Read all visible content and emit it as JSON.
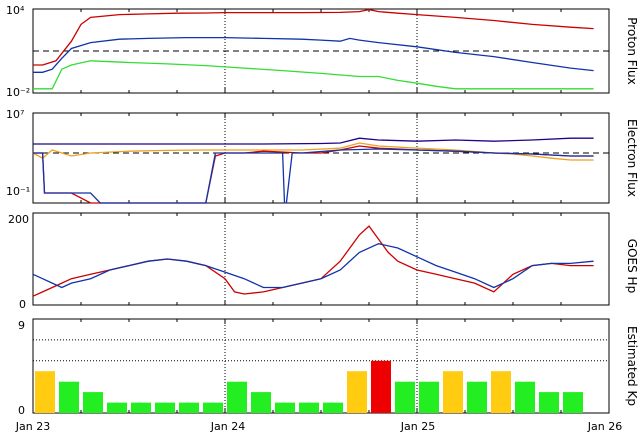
{
  "x_axis": {
    "ticks": [
      "Jan 23",
      "Jan 24",
      "Jan 25",
      "Jan 26"
    ],
    "range_days": [
      0,
      3
    ]
  },
  "colors": {
    "red": "#cc0000",
    "blue": "#1133aa",
    "green": "#33dd33",
    "orange": "#eea020",
    "navy": "#220088",
    "kp_green": "#22ee22",
    "kp_yellow": "#ffcc11",
    "kp_red": "#ee0000"
  },
  "chart_data": [
    {
      "type": "line",
      "ylabel": "Proton Flux",
      "yscale": "log",
      "ylim": [
        0.01,
        10000
      ],
      "y_tick_labels": [
        "10⁴",
        "10⁻²"
      ],
      "threshold": 10,
      "series": [
        {
          "color": "red",
          "x": [
            0,
            0.05,
            0.12,
            0.2,
            0.25,
            0.3,
            0.45,
            0.6,
            0.75,
            0.9,
            1.0,
            1.2,
            1.4,
            1.6,
            1.7,
            1.75,
            1.8,
            1.9,
            2.0,
            2.2,
            2.4,
            2.6,
            2.8,
            2.92
          ],
          "y": [
            1,
            1,
            2,
            50,
            800,
            2500,
            4000,
            4500,
            5000,
            5200,
            5500,
            5500,
            5500,
            5700,
            6500,
            9000,
            6500,
            5000,
            4000,
            2500,
            1500,
            800,
            500,
            400
          ]
        },
        {
          "color": "blue",
          "x": [
            0,
            0.05,
            0.1,
            0.15,
            0.2,
            0.3,
            0.45,
            0.6,
            0.8,
            1.0,
            1.2,
            1.4,
            1.5,
            1.6,
            1.65,
            1.7,
            1.8,
            2.0,
            2.2,
            2.4,
            2.6,
            2.8,
            2.92
          ],
          "y": [
            0.3,
            0.3,
            0.5,
            3,
            15,
            40,
            70,
            80,
            90,
            90,
            80,
            70,
            60,
            50,
            80,
            60,
            40,
            20,
            8,
            4,
            1.5,
            0.6,
            0.4
          ]
        },
        {
          "color": "green",
          "x": [
            0,
            0.1,
            0.15,
            0.2,
            0.3,
            0.5,
            0.7,
            0.9,
            1.1,
            1.3,
            1.5,
            1.7,
            1.8,
            1.9,
            2.0,
            2.1,
            2.2,
            2.4,
            2.6,
            2.8,
            2.92
          ],
          "y": [
            0.02,
            0.02,
            0.5,
            1,
            2,
            1.5,
            1.2,
            0.9,
            0.6,
            0.4,
            0.25,
            0.15,
            0.15,
            0.08,
            0.05,
            0.03,
            0.02,
            0.02,
            0.02,
            0.02,
            0.02
          ]
        }
      ]
    },
    {
      "type": "line",
      "ylabel": "Electron Flux",
      "yscale": "log",
      "ylim": [
        0.01,
        10000000
      ],
      "y_tick_labels": [
        "10⁷",
        "10⁻¹"
      ],
      "threshold": 1000,
      "series": [
        {
          "color": "navy",
          "x": [
            0,
            0.3,
            0.6,
            0.9,
            1.2,
            1.5,
            1.6,
            1.7,
            1.8,
            2.0,
            2.2,
            2.4,
            2.6,
            2.8,
            2.92
          ],
          "y": [
            8000,
            8000,
            8000,
            8000,
            8000,
            9000,
            10000,
            30000,
            20000,
            15000,
            20000,
            15000,
            20000,
            30000,
            30000
          ]
        },
        {
          "color": "orange",
          "x": [
            0,
            0.05,
            0.1,
            0.2,
            0.3,
            0.5,
            0.7,
            0.9,
            1.0,
            1.2,
            1.4,
            1.6,
            1.7,
            1.8,
            2.0,
            2.2,
            2.4,
            2.5,
            2.6,
            2.7,
            2.8,
            2.92
          ],
          "y": [
            1000,
            300,
            2000,
            500,
            1000,
            1500,
            1800,
            2000,
            2000,
            2000,
            2000,
            3000,
            10000,
            5000,
            3000,
            2000,
            1000,
            800,
            500,
            300,
            200,
            200
          ]
        },
        {
          "color": "red",
          "x": [
            0,
            0.05,
            0.06,
            0.2,
            0.3,
            0.6,
            0.7,
            0.8,
            0.9,
            0.95,
            1.0,
            1.1,
            1.2,
            1.4,
            1.5,
            1.6,
            1.7,
            1.8,
            1.9,
            2.0,
            2.2,
            2.4,
            2.6,
            2.8,
            2.92
          ],
          "y": [
            1000,
            1000,
            0.1,
            0.1,
            0.01,
            0.01,
            0.01,
            0.01,
            0.01,
            500,
            1000,
            1000,
            1500,
            1000,
            1000,
            2000,
            5000,
            3000,
            2500,
            2000,
            1500,
            1000,
            800,
            500,
            500
          ]
        },
        {
          "color": "blue",
          "x": [
            0,
            0.05,
            0.06,
            0.3,
            0.35,
            0.5,
            0.9,
            0.95,
            1.0,
            1.2,
            1.3,
            1.31,
            1.32,
            1.35,
            1.4,
            1.6,
            1.8,
            2.0,
            2.2,
            2.4,
            2.6,
            2.8,
            2.92
          ],
          "y": [
            1000,
            1000,
            0.1,
            0.1,
            0.01,
            0.01,
            0.01,
            1000,
            1000,
            1000,
            1000,
            0.01,
            0.01,
            1000,
            1000,
            2000,
            2500,
            2000,
            1500,
            1000,
            800,
            500,
            500
          ]
        }
      ]
    },
    {
      "type": "line",
      "ylabel": "GOES Hp",
      "ylim": [
        0,
        210
      ],
      "y_tick_labels": [
        "200",
        "0"
      ],
      "series": [
        {
          "color": "red",
          "x": [
            0,
            0.05,
            0.1,
            0.15,
            0.2,
            0.3,
            0.4,
            0.5,
            0.6,
            0.7,
            0.8,
            0.9,
            1.0,
            1.05,
            1.1,
            1.2,
            1.3,
            1.4,
            1.5,
            1.6,
            1.7,
            1.75,
            1.8,
            1.85,
            1.9,
            2.0,
            2.1,
            2.2,
            2.3,
            2.4,
            2.5,
            2.6,
            2.7,
            2.8,
            2.92
          ],
          "y": [
            20,
            30,
            40,
            50,
            60,
            70,
            80,
            90,
            100,
            105,
            100,
            90,
            60,
            30,
            25,
            30,
            40,
            50,
            60,
            100,
            160,
            180,
            150,
            120,
            100,
            80,
            70,
            60,
            50,
            30,
            70,
            90,
            95,
            90,
            90
          ]
        },
        {
          "color": "blue",
          "x": [
            0,
            0.05,
            0.1,
            0.15,
            0.2,
            0.3,
            0.4,
            0.5,
            0.6,
            0.7,
            0.8,
            0.9,
            1.0,
            1.1,
            1.2,
            1.3,
            1.4,
            1.5,
            1.6,
            1.7,
            1.8,
            1.9,
            2.0,
            2.1,
            2.2,
            2.3,
            2.4,
            2.5,
            2.6,
            2.7,
            2.8,
            2.92
          ],
          "y": [
            70,
            60,
            50,
            40,
            50,
            60,
            80,
            90,
            100,
            105,
            100,
            90,
            75,
            60,
            40,
            40,
            50,
            60,
            80,
            120,
            140,
            130,
            110,
            90,
            75,
            60,
            40,
            60,
            90,
            95,
            95,
            100
          ]
        }
      ]
    },
    {
      "type": "bar",
      "ylabel": "Estimated Kp",
      "ylim": [
        0,
        9
      ],
      "y_tick_labels": [
        "9",
        "0"
      ],
      "values": [
        4.0,
        3.0,
        2.0,
        1.0,
        1.0,
        1.0,
        1.0,
        1.0,
        3.0,
        2.0,
        1.0,
        1.0,
        1.0,
        4.0,
        5.0,
        3.0,
        3.0,
        4.0,
        3.0,
        4.0,
        3.0,
        2.0,
        2.0
      ],
      "colors": [
        "kp_yellow",
        "kp_green",
        "kp_green",
        "kp_green",
        "kp_green",
        "kp_green",
        "kp_green",
        "kp_green",
        "kp_green",
        "kp_green",
        "kp_green",
        "kp_green",
        "kp_green",
        "kp_yellow",
        "kp_red",
        "kp_green",
        "kp_green",
        "kp_yellow",
        "kp_green",
        "kp_yellow",
        "kp_green",
        "kp_green",
        "kp_green"
      ]
    }
  ]
}
